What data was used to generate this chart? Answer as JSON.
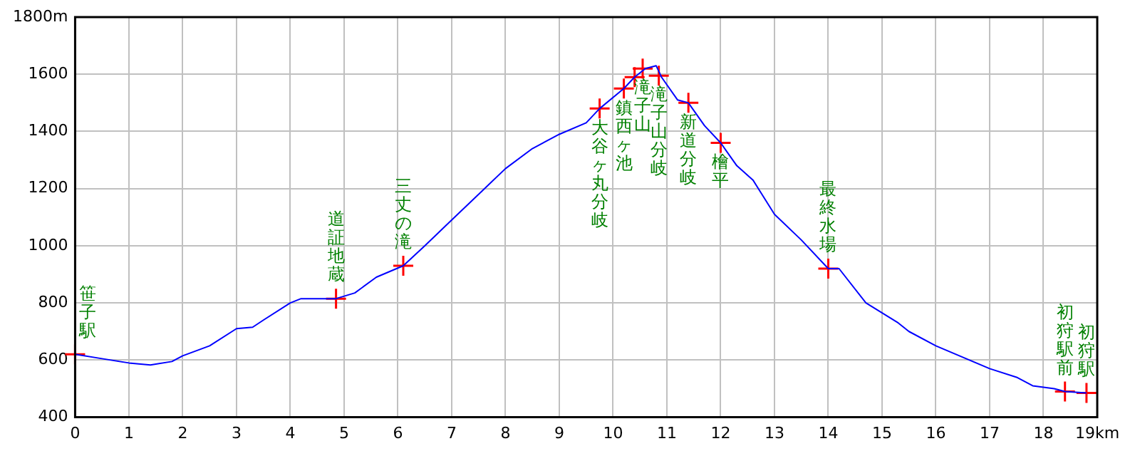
{
  "chart_data": {
    "type": "line",
    "xlim": [
      0,
      19
    ],
    "ylim": [
      400,
      1800
    ],
    "xticks": [
      0,
      1,
      2,
      3,
      4,
      5,
      6,
      7,
      8,
      9,
      10,
      11,
      12,
      13,
      14,
      15,
      16,
      17,
      18,
      {
        "value": 19,
        "label": "19km"
      }
    ],
    "yticks": [
      400,
      600,
      800,
      1000,
      1200,
      1400,
      1600,
      {
        "value": 1800,
        "label": "1800m"
      }
    ],
    "grid": true,
    "legend": false,
    "series": [
      {
        "color": "#0000ff",
        "marker": "none",
        "line_style": "solid",
        "x": [
          0,
          0.5,
          1,
          1.4,
          1.8,
          2,
          2.5,
          3,
          3.3,
          3.5,
          4,
          4.2,
          4.85,
          5.2,
          5.6,
          6.1,
          6.5,
          7,
          7.5,
          8,
          8.5,
          9,
          9.5,
          9.75,
          10.2,
          10.4,
          10.6,
          10.8,
          10.9,
          11.2,
          11.4,
          11.7,
          12,
          12.3,
          12.6,
          13,
          13.5,
          14,
          14.2,
          14.7,
          15.3,
          15.5,
          16,
          16.5,
          17,
          17.5,
          17.8,
          18.2,
          18.4,
          18.8
        ],
        "values": [
          620,
          605,
          590,
          583,
          595,
          615,
          650,
          710,
          715,
          740,
          800,
          815,
          815,
          835,
          890,
          930,
          1000,
          1090,
          1180,
          1270,
          1340,
          1390,
          1430,
          1480,
          1550,
          1590,
          1620,
          1630,
          1590,
          1510,
          1500,
          1420,
          1360,
          1280,
          1230,
          1110,
          1020,
          920,
          920,
          800,
          730,
          700,
          650,
          610,
          570,
          540,
          510,
          500,
          490,
          485
        ]
      },
      {
        "type": "scatter",
        "color": "#ff0000",
        "marker": "cross",
        "x": [
          0,
          4.85,
          6.1,
          9.75,
          10.2,
          10.4,
          10.55,
          10.85,
          11.4,
          12,
          14,
          18.4,
          18.8
        ],
        "values": [
          620,
          815,
          930,
          1480,
          1550,
          1590,
          1620,
          1595,
          1500,
          1360,
          920,
          490,
          485
        ]
      }
    ],
    "annotations": [
      {
        "text": "笹子駅",
        "x": 0,
        "y": 620
      },
      {
        "text": "道証地蔵",
        "x": 4.85,
        "y": 815
      },
      {
        "text": "三丈の滝",
        "x": 6.1,
        "y": 930
      },
      {
        "text": "大谷ヶ丸分岐",
        "x": 9.75,
        "y": 1480
      },
      {
        "text": "鎮西ヶ池",
        "x": 10.2,
        "y": 1550
      },
      {
        "text": "滝子山",
        "x": 10.55,
        "y": 1620
      },
      {
        "text": "滝子山分岐",
        "x": 10.85,
        "y": 1595
      },
      {
        "text": "新道分岐",
        "x": 11.4,
        "y": 1500
      },
      {
        "text": "檜平",
        "x": 12,
        "y": 1360
      },
      {
        "text": "最終水場",
        "x": 14,
        "y": 920
      },
      {
        "text": "初狩駅前",
        "x": 18.4,
        "y": 490
      },
      {
        "text": "初狩駅",
        "x": 18.8,
        "y": 485
      }
    ]
  }
}
